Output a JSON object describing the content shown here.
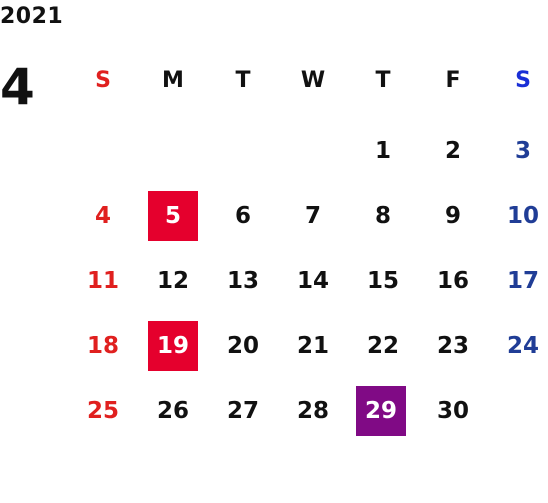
{
  "calendar": {
    "year": "2021",
    "month": "4",
    "weekdays": [
      "S",
      "M",
      "T",
      "W",
      "T",
      "F",
      "S"
    ],
    "colors": {
      "sunday": "#e0201f",
      "saturday_header": "#1a2fd6",
      "saturday": "#203d96",
      "holiday_bg": "#e5002d",
      "special_bg": "#800a85",
      "text": "#111111"
    },
    "weeks": [
      [
        "",
        "",
        "",
        "",
        "1",
        "2",
        "3"
      ],
      [
        "4",
        "5",
        "6",
        "7",
        "8",
        "9",
        "10"
      ],
      [
        "11",
        "12",
        "13",
        "14",
        "15",
        "16",
        "17"
      ],
      [
        "18",
        "19",
        "20",
        "21",
        "22",
        "23",
        "24"
      ],
      [
        "25",
        "26",
        "27",
        "28",
        "29",
        "30",
        ""
      ]
    ],
    "holidays": [
      "5",
      "19"
    ],
    "special": [
      "29"
    ]
  }
}
